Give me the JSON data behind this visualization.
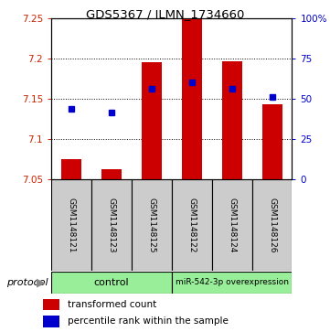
{
  "title": "GDS5367 / ILMN_1734660",
  "samples": [
    "GSM1148121",
    "GSM1148123",
    "GSM1148125",
    "GSM1148122",
    "GSM1148124",
    "GSM1148126"
  ],
  "red_values": [
    7.075,
    7.063,
    7.195,
    7.25,
    7.197,
    7.143
  ],
  "blue_values": [
    7.138,
    7.133,
    7.162,
    7.17,
    7.163,
    7.152
  ],
  "red_base": 7.05,
  "ylim_left": [
    7.05,
    7.25
  ],
  "yticks_left": [
    7.05,
    7.1,
    7.15,
    7.2,
    7.25
  ],
  "yticks_right": [
    0,
    25,
    50,
    75,
    100
  ],
  "ylim_right": [
    0,
    100
  ],
  "bar_color": "#cc0000",
  "dot_color": "#0000cc",
  "bg_color": "#ffffff",
  "plot_bg": "#ffffff",
  "label_color_left": "#cc2200",
  "label_color_right": "#0000cc",
  "sample_bg": "#cccccc",
  "group_bg": "#99ee99",
  "bar_width": 0.5
}
